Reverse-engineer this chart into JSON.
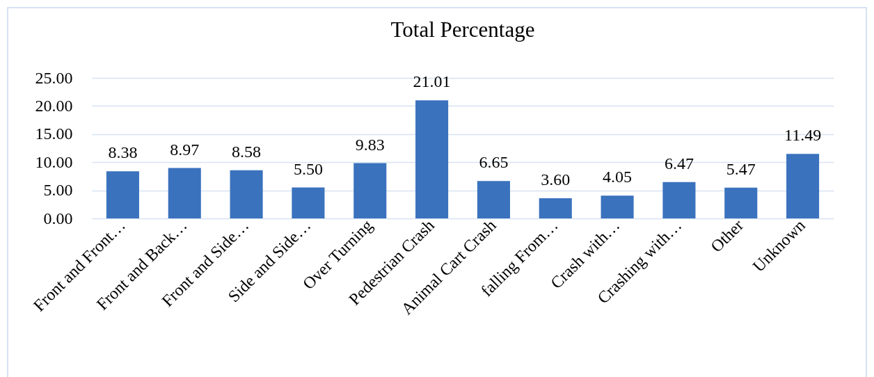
{
  "chart_data": {
    "type": "bar",
    "title": "Total Percentage",
    "categories": [
      "Front and Front…",
      "Front and Back…",
      "Front and Side…",
      "Side and Side…",
      "Over Turning",
      "Pedestrian Crash",
      "Animal Cart Crash",
      "falling From…",
      "Crash with…",
      "Crashing with…",
      "Other",
      "Unknown"
    ],
    "values": [
      8.38,
      8.97,
      8.58,
      5.5,
      9.83,
      21.01,
      6.65,
      3.6,
      4.05,
      6.47,
      5.47,
      11.49
    ],
    "value_labels": [
      "8.38",
      "8.97",
      "8.58",
      "5.50",
      "9.83",
      "21.01",
      "6.65",
      "3.60",
      "4.05",
      "6.47",
      "5.47",
      "11.49"
    ],
    "color": "#3a72bd",
    "ylim": [
      0,
      25
    ],
    "yticks": [
      {
        "value": 0,
        "label": "0.00"
      },
      {
        "value": 5,
        "label": "5.00"
      },
      {
        "value": 10,
        "label": "10.00"
      },
      {
        "value": 15,
        "label": "15.00"
      },
      {
        "value": 20,
        "label": "20.00"
      },
      {
        "value": 25,
        "label": "25.00"
      }
    ],
    "grid": "y"
  }
}
